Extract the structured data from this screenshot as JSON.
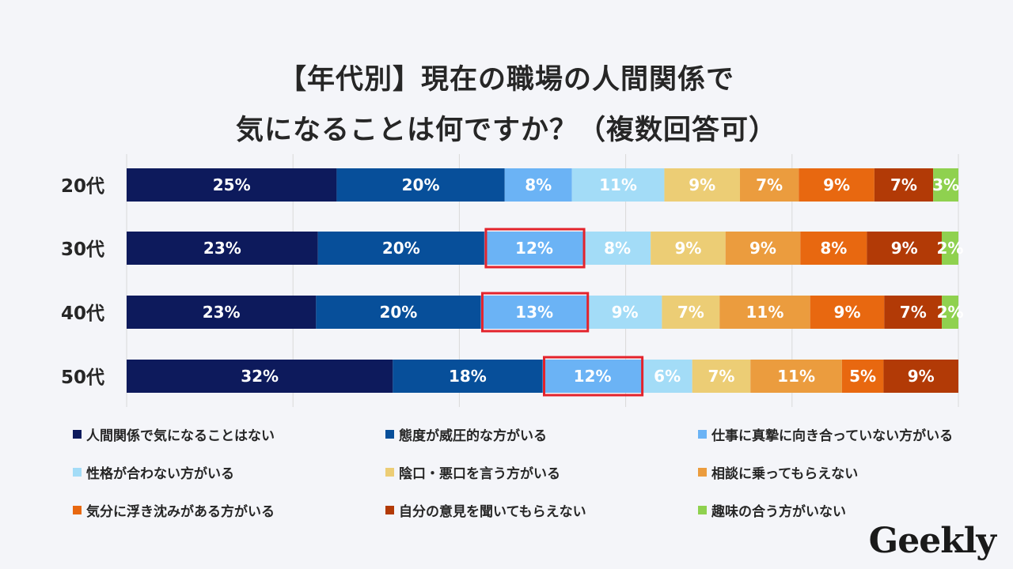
{
  "title_line1": "【年代別】現在の職場の人間関係で",
  "title_line2": "気になることは何ですか？（複数回答可）",
  "logo": "Geekly",
  "highlight_color": "#e3232c",
  "chart_data": {
    "type": "stacked-bar-horizontal-100",
    "categories": [
      "20代",
      "30代",
      "40代",
      "50代"
    ],
    "series": [
      {
        "name": "人間関係で気になることはない",
        "color": "#0d1a5c",
        "values": [
          25,
          23,
          23,
          32
        ],
        "labels": [
          "25%",
          "23%",
          "23%",
          "32%"
        ]
      },
      {
        "name": "態度が威圧的な方がいる",
        "color": "#074f9a",
        "values": [
          20,
          20,
          20,
          18
        ],
        "labels": [
          "20%",
          "20%",
          "20%",
          "18%"
        ]
      },
      {
        "name": "仕事に真摯に向き合っていない方がいる",
        "color": "#6bb3f5",
        "values": [
          8,
          12,
          13,
          12
        ],
        "labels": [
          "8%",
          "12%",
          "13%",
          "12%"
        ]
      },
      {
        "name": "性格が合わない方がいる",
        "color": "#a3dcf7",
        "values": [
          11,
          8,
          9,
          6
        ],
        "labels": [
          "11%",
          "8%",
          "9%",
          "6%"
        ]
      },
      {
        "name": "陰口・悪口を言う方がいる",
        "color": "#eccd75",
        "values": [
          9,
          9,
          7,
          7
        ],
        "labels": [
          "9%",
          "9%",
          "7%",
          "7%"
        ]
      },
      {
        "name": "相談に乗ってもらえない",
        "color": "#eb9c3e",
        "values": [
          7,
          9,
          11,
          11
        ],
        "labels": [
          "7%",
          "9%",
          "11%",
          "11%"
        ]
      },
      {
        "name": "気分に浮き沈みがある方がいる",
        "color": "#e86810",
        "values": [
          9,
          8,
          9,
          5
        ],
        "labels": [
          "9%",
          "8%",
          "9%",
          "5%"
        ]
      },
      {
        "name": "自分の意見を聞いてもらえない",
        "color": "#b23a06",
        "values": [
          7,
          9,
          7,
          9
        ],
        "labels": [
          "7%",
          "9%",
          "7%",
          "9%"
        ]
      },
      {
        "name": "趣味の合う方がいない",
        "color": "#8fd14f",
        "values": [
          3,
          2,
          2,
          0
        ],
        "labels": [
          "3%",
          "2%",
          "2%",
          ""
        ]
      }
    ],
    "highlighted": [
      {
        "category_index": 1,
        "series_index": 2
      },
      {
        "category_index": 2,
        "series_index": 2
      },
      {
        "category_index": 3,
        "series_index": 2
      }
    ],
    "gridlines": true,
    "legend_position": "bottom"
  }
}
